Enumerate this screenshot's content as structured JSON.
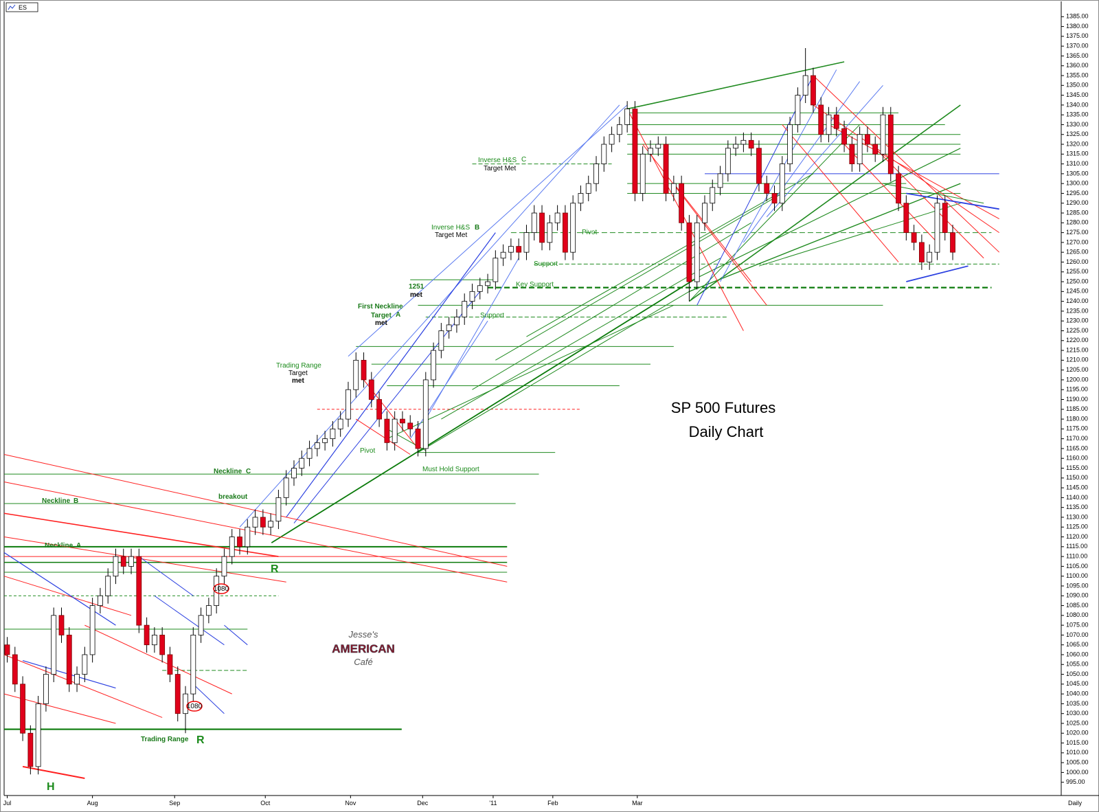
{
  "chart_data": {
    "type": "candlestick",
    "symbol": "ES",
    "title": "SP 500 Futures",
    "subtitle": "Daily Chart",
    "x_axis_label": "Daily",
    "logo": [
      "Jesse's",
      "AMERICAN",
      "Café"
    ],
    "up_color": "#ffffff",
    "down_color": "#e0001b",
    "xlim": [
      -0.4,
      136
    ],
    "xticks": [
      {
        "value": 0,
        "label": "Jul"
      },
      {
        "value": 11,
        "label": "Aug"
      },
      {
        "value": 21.6,
        "label": "Sep"
      },
      {
        "value": 33.3,
        "label": "Oct"
      },
      {
        "value": 44.3,
        "label": "Nov"
      },
      {
        "value": 53.6,
        "label": "Dec"
      },
      {
        "value": 62.7,
        "label": "'11"
      },
      {
        "value": 70.4,
        "label": "Feb"
      },
      {
        "value": 81.3,
        "label": "Mar"
      }
    ],
    "ylim": [
      990,
      1390
    ],
    "yticks": [
      {
        "value": 995,
        "label": "995.00"
      },
      {
        "value": 1000,
        "label": "1000.00"
      },
      {
        "value": 1005,
        "label": "1005.00"
      },
      {
        "value": 1010,
        "label": "1010.00"
      },
      {
        "value": 1015,
        "label": "1015.00"
      },
      {
        "value": 1020,
        "label": "1020.00"
      },
      {
        "value": 1025,
        "label": "1025.00"
      },
      {
        "value": 1030,
        "label": "1030.00"
      },
      {
        "value": 1035,
        "label": "1035.00"
      },
      {
        "value": 1040,
        "label": "1040.00"
      },
      {
        "value": 1045,
        "label": "1045.00"
      },
      {
        "value": 1050,
        "label": "1050.00"
      },
      {
        "value": 1055,
        "label": "1055.00"
      },
      {
        "value": 1060,
        "label": "1060.00"
      },
      {
        "value": 1065,
        "label": "1065.00"
      },
      {
        "value": 1070,
        "label": "1070.00"
      },
      {
        "value": 1075,
        "label": "1075.00"
      },
      {
        "value": 1080,
        "label": "1080.00"
      },
      {
        "value": 1085,
        "label": "1085.00"
      },
      {
        "value": 1090,
        "label": "1090.00"
      },
      {
        "value": 1095,
        "label": "1095.00"
      },
      {
        "value": 1100,
        "label": "1100.00"
      },
      {
        "value": 1105,
        "label": "1105.00"
      },
      {
        "value": 1110,
        "label": "1110.00"
      },
      {
        "value": 1115,
        "label": "1115.00"
      },
      {
        "value": 1120,
        "label": "1120.00"
      },
      {
        "value": 1125,
        "label": "1125.00"
      },
      {
        "value": 1130,
        "label": "1130.00"
      },
      {
        "value": 1135,
        "label": "1135.00"
      },
      {
        "value": 1140,
        "label": "1140.00"
      },
      {
        "value": 1145,
        "label": "1145.00"
      },
      {
        "value": 1150,
        "label": "1150.00"
      },
      {
        "value": 1155,
        "label": "1155.00"
      },
      {
        "value": 1160,
        "label": "1160.00"
      },
      {
        "value": 1165,
        "label": "1165.00"
      },
      {
        "value": 1170,
        "label": "1170.00"
      },
      {
        "value": 1175,
        "label": "1175.00"
      },
      {
        "value": 1180,
        "label": "1180.00"
      },
      {
        "value": 1185,
        "label": "1185.00"
      },
      {
        "value": 1190,
        "label": "1190.00"
      },
      {
        "value": 1195,
        "label": "1195.00"
      },
      {
        "value": 1200,
        "label": "1200.00"
      },
      {
        "value": 1205,
        "label": "1205.00"
      },
      {
        "value": 1210,
        "label": "1210.00"
      },
      {
        "value": 1215,
        "label": "1215.00"
      },
      {
        "value": 1220,
        "label": "1220.00"
      },
      {
        "value": 1225,
        "label": "1225.00"
      },
      {
        "value": 1230,
        "label": "1230.00"
      },
      {
        "value": 1235,
        "label": "1235.00"
      },
      {
        "value": 1240,
        "label": "1240.00"
      },
      {
        "value": 1245,
        "label": "1245.00"
      },
      {
        "value": 1250,
        "label": "1250.00"
      },
      {
        "value": 1255,
        "label": "1255.00"
      },
      {
        "value": 1260,
        "label": "1260.00"
      },
      {
        "value": 1265,
        "label": "1265.00"
      },
      {
        "value": 1270,
        "label": "1270.00"
      },
      {
        "value": 1275,
        "label": "1275.00"
      },
      {
        "value": 1280,
        "label": "1280.00"
      },
      {
        "value": 1285,
        "label": "1285.00"
      },
      {
        "value": 1290,
        "label": "1290.00"
      },
      {
        "value": 1295,
        "label": "1295.00"
      },
      {
        "value": 1300,
        "label": "1300.00"
      },
      {
        "value": 1305,
        "label": "1305.00"
      },
      {
        "value": 1310,
        "label": "1310.00"
      },
      {
        "value": 1315,
        "label": "1315.00"
      },
      {
        "value": 1320,
        "label": "1320.00"
      },
      {
        "value": 1325,
        "label": "1325.00"
      },
      {
        "value": 1330,
        "label": "1330.00"
      },
      {
        "value": 1335,
        "label": "1335.00"
      },
      {
        "value": 1340,
        "label": "1340.00"
      },
      {
        "value": 1345,
        "label": "1345.00"
      },
      {
        "value": 1350,
        "label": "1350.00"
      },
      {
        "value": 1355,
        "label": "1355.00"
      },
      {
        "value": 1360,
        "label": "1360.00"
      },
      {
        "value": 1365,
        "label": "1365.00"
      },
      {
        "value": 1370,
        "label": "1370.00"
      },
      {
        "value": 1375,
        "label": "1375.00"
      },
      {
        "value": 1380,
        "label": "1380.00"
      },
      {
        "value": 1385,
        "label": "1385.00"
      }
    ],
    "series": [
      {
        "name": "ES",
        "open": [
          1065,
          1060,
          1045,
          1020,
          1003,
          1035,
          1050,
          1080,
          1070,
          1045,
          1050,
          1060,
          1085,
          1090,
          1100,
          1110,
          1105,
          1110,
          1075,
          1065,
          1070,
          1060,
          1050,
          1030,
          1040,
          1070,
          1080,
          1085,
          1100,
          1110,
          1120,
          1115,
          1125,
          1130,
          1125,
          1128,
          1140,
          1150,
          1155,
          1160,
          1165,
          1168,
          1170,
          1175,
          1180,
          1195,
          1210,
          1200,
          1190,
          1180,
          1168,
          1180,
          1178,
          1175,
          1165,
          1200,
          1215,
          1225,
          1228,
          1232,
          1240,
          1245,
          1248,
          1250,
          1262,
          1265,
          1268,
          1265,
          1275,
          1285,
          1270,
          1280,
          1285,
          1265,
          1290,
          1295,
          1300,
          1310,
          1320,
          1325,
          1330,
          1338,
          1295,
          1315,
          1318,
          1320,
          1295,
          1300,
          1280,
          1250,
          1280,
          1290,
          1298,
          1305,
          1318,
          1320,
          1322,
          1318,
          1300,
          1295,
          1290,
          1310,
          1330,
          1345,
          1355,
          1340,
          1325,
          1335,
          1328,
          1320,
          1310,
          1325,
          1320,
          1315,
          1335,
          1305,
          1290,
          1275,
          1270,
          1260,
          1265,
          1290,
          1275
        ],
        "high": [
          1069,
          1064,
          1049,
          1024,
          1039,
          1054,
          1084,
          1084,
          1074,
          1054,
          1064,
          1089,
          1094,
          1104,
          1114,
          1114,
          1114,
          1114,
          1079,
          1074,
          1074,
          1064,
          1054,
          1044,
          1074,
          1084,
          1089,
          1104,
          1114,
          1124,
          1124,
          1129,
          1134,
          1134,
          1132,
          1144,
          1154,
          1159,
          1164,
          1169,
          1172,
          1174,
          1179,
          1184,
          1199,
          1214,
          1214,
          1204,
          1194,
          1184,
          1184,
          1184,
          1182,
          1179,
          1204,
          1219,
          1229,
          1232,
          1236,
          1244,
          1249,
          1252,
          1254,
          1266,
          1269,
          1272,
          1272,
          1279,
          1289,
          1289,
          1284,
          1289,
          1289,
          1294,
          1299,
          1304,
          1314,
          1324,
          1329,
          1334,
          1342,
          1342,
          1319,
          1322,
          1324,
          1324,
          1304,
          1304,
          1284,
          1284,
          1294,
          1302,
          1309,
          1322,
          1324,
          1326,
          1326,
          1322,
          1304,
          1299,
          1314,
          1334,
          1349,
          1369,
          1359,
          1344,
          1339,
          1339,
          1332,
          1324,
          1329,
          1329,
          1324,
          1339,
          1339,
          1309,
          1294,
          1279,
          1274,
          1269,
          1294,
          1294,
          1279
        ],
        "low": [
          1056,
          1041,
          1016,
          999,
          999,
          1031,
          1046,
          1066,
          1041,
          1041,
          1046,
          1056,
          1081,
          1086,
          1096,
          1101,
          1101,
          1071,
          1061,
          1061,
          1056,
          1046,
          1026,
          1020,
          1036,
          1066,
          1076,
          1081,
          1096,
          1106,
          1111,
          1111,
          1121,
          1121,
          1121,
          1124,
          1136,
          1146,
          1151,
          1156,
          1161,
          1164,
          1166,
          1171,
          1176,
          1191,
          1196,
          1186,
          1176,
          1164,
          1164,
          1174,
          1171,
          1161,
          1161,
          1196,
          1211,
          1221,
          1224,
          1228,
          1236,
          1241,
          1244,
          1246,
          1258,
          1261,
          1261,
          1261,
          1271,
          1266,
          1266,
          1276,
          1261,
          1261,
          1286,
          1291,
          1296,
          1306,
          1316,
          1321,
          1326,
          1291,
          1291,
          1311,
          1314,
          1291,
          1291,
          1276,
          1240,
          1246,
          1276,
          1286,
          1294,
          1301,
          1314,
          1316,
          1314,
          1296,
          1291,
          1286,
          1286,
          1306,
          1326,
          1341,
          1336,
          1321,
          1321,
          1324,
          1316,
          1306,
          1306,
          1316,
          1311,
          1311,
          1301,
          1286,
          1271,
          1266,
          1256,
          1256,
          1261,
          1271,
          1261
        ],
        "close": [
          1060,
          1045,
          1020,
          1003,
          1035,
          1050,
          1080,
          1070,
          1045,
          1050,
          1060,
          1085,
          1090,
          1100,
          1110,
          1105,
          1110,
          1075,
          1065,
          1070,
          1060,
          1050,
          1030,
          1040,
          1070,
          1080,
          1085,
          1100,
          1110,
          1120,
          1115,
          1125,
          1130,
          1125,
          1128,
          1140,
          1150,
          1155,
          1160,
          1165,
          1168,
          1170,
          1175,
          1180,
          1195,
          1210,
          1200,
          1190,
          1180,
          1168,
          1180,
          1178,
          1175,
          1165,
          1200,
          1215,
          1225,
          1228,
          1232,
          1240,
          1245,
          1248,
          1250,
          1262,
          1265,
          1268,
          1265,
          1275,
          1285,
          1270,
          1280,
          1285,
          1265,
          1290,
          1295,
          1300,
          1310,
          1320,
          1325,
          1330,
          1338,
          1295,
          1315,
          1318,
          1320,
          1295,
          1300,
          1280,
          1250,
          1280,
          1290,
          1298,
          1305,
          1318,
          1320,
          1322,
          1318,
          1300,
          1295,
          1290,
          1310,
          1330,
          1345,
          1355,
          1340,
          1325,
          1335,
          1328,
          1320,
          1310,
          1325,
          1320,
          1315,
          1335,
          1305,
          1290,
          1275,
          1270,
          1260,
          1265,
          1290,
          1275,
          1265
        ]
      }
    ],
    "annotations": [
      "Inverse H&S",
      "C",
      "Target Met",
      "Inverse H&S",
      "B",
      "Target Met",
      "1251",
      "met",
      "First Neckline",
      "Target",
      "A",
      "met",
      "Trading Range",
      "Target",
      "met",
      "Support",
      "Key Support",
      "Support",
      "Pivot",
      "Pivot",
      "Must Hold Support",
      "Neckline",
      "C",
      "Neckline",
      "B",
      "Neckline",
      "A",
      "breakout",
      "R",
      "R",
      "H",
      "Trading Range",
      "1080",
      "1080"
    ]
  }
}
